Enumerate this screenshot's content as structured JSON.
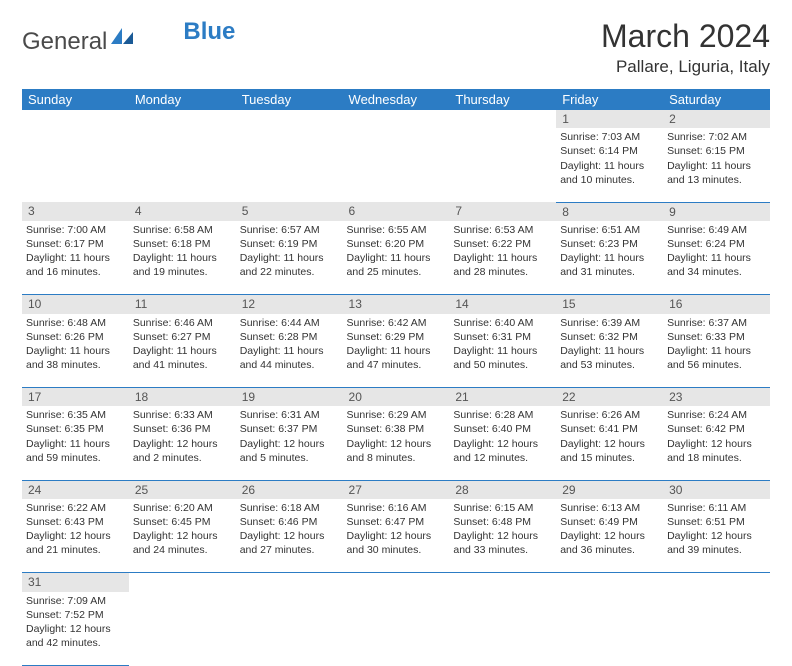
{
  "brand": {
    "text1": "General",
    "text2": "Blue"
  },
  "title": "March 2024",
  "location": "Pallare, Liguria, Italy",
  "colors": {
    "header_bg": "#2c7cc4",
    "daynum_bg": "#e6e6e6",
    "border": "#2c7cc4"
  },
  "weekdays": [
    "Sunday",
    "Monday",
    "Tuesday",
    "Wednesday",
    "Thursday",
    "Friday",
    "Saturday"
  ],
  "weeks": [
    [
      null,
      null,
      null,
      null,
      null,
      {
        "n": "1",
        "sr": "7:03 AM",
        "ss": "6:14 PM",
        "dl": "11 hours and 10 minutes."
      },
      {
        "n": "2",
        "sr": "7:02 AM",
        "ss": "6:15 PM",
        "dl": "11 hours and 13 minutes."
      }
    ],
    [
      {
        "n": "3",
        "sr": "7:00 AM",
        "ss": "6:17 PM",
        "dl": "11 hours and 16 minutes."
      },
      {
        "n": "4",
        "sr": "6:58 AM",
        "ss": "6:18 PM",
        "dl": "11 hours and 19 minutes."
      },
      {
        "n": "5",
        "sr": "6:57 AM",
        "ss": "6:19 PM",
        "dl": "11 hours and 22 minutes."
      },
      {
        "n": "6",
        "sr": "6:55 AM",
        "ss": "6:20 PM",
        "dl": "11 hours and 25 minutes."
      },
      {
        "n": "7",
        "sr": "6:53 AM",
        "ss": "6:22 PM",
        "dl": "11 hours and 28 minutes."
      },
      {
        "n": "8",
        "sr": "6:51 AM",
        "ss": "6:23 PM",
        "dl": "11 hours and 31 minutes."
      },
      {
        "n": "9",
        "sr": "6:49 AM",
        "ss": "6:24 PM",
        "dl": "11 hours and 34 minutes."
      }
    ],
    [
      {
        "n": "10",
        "sr": "6:48 AM",
        "ss": "6:26 PM",
        "dl": "11 hours and 38 minutes."
      },
      {
        "n": "11",
        "sr": "6:46 AM",
        "ss": "6:27 PM",
        "dl": "11 hours and 41 minutes."
      },
      {
        "n": "12",
        "sr": "6:44 AM",
        "ss": "6:28 PM",
        "dl": "11 hours and 44 minutes."
      },
      {
        "n": "13",
        "sr": "6:42 AM",
        "ss": "6:29 PM",
        "dl": "11 hours and 47 minutes."
      },
      {
        "n": "14",
        "sr": "6:40 AM",
        "ss": "6:31 PM",
        "dl": "11 hours and 50 minutes."
      },
      {
        "n": "15",
        "sr": "6:39 AM",
        "ss": "6:32 PM",
        "dl": "11 hours and 53 minutes."
      },
      {
        "n": "16",
        "sr": "6:37 AM",
        "ss": "6:33 PM",
        "dl": "11 hours and 56 minutes."
      }
    ],
    [
      {
        "n": "17",
        "sr": "6:35 AM",
        "ss": "6:35 PM",
        "dl": "11 hours and 59 minutes."
      },
      {
        "n": "18",
        "sr": "6:33 AM",
        "ss": "6:36 PM",
        "dl": "12 hours and 2 minutes."
      },
      {
        "n": "19",
        "sr": "6:31 AM",
        "ss": "6:37 PM",
        "dl": "12 hours and 5 minutes."
      },
      {
        "n": "20",
        "sr": "6:29 AM",
        "ss": "6:38 PM",
        "dl": "12 hours and 8 minutes."
      },
      {
        "n": "21",
        "sr": "6:28 AM",
        "ss": "6:40 PM",
        "dl": "12 hours and 12 minutes."
      },
      {
        "n": "22",
        "sr": "6:26 AM",
        "ss": "6:41 PM",
        "dl": "12 hours and 15 minutes."
      },
      {
        "n": "23",
        "sr": "6:24 AM",
        "ss": "6:42 PM",
        "dl": "12 hours and 18 minutes."
      }
    ],
    [
      {
        "n": "24",
        "sr": "6:22 AM",
        "ss": "6:43 PM",
        "dl": "12 hours and 21 minutes."
      },
      {
        "n": "25",
        "sr": "6:20 AM",
        "ss": "6:45 PM",
        "dl": "12 hours and 24 minutes."
      },
      {
        "n": "26",
        "sr": "6:18 AM",
        "ss": "6:46 PM",
        "dl": "12 hours and 27 minutes."
      },
      {
        "n": "27",
        "sr": "6:16 AM",
        "ss": "6:47 PM",
        "dl": "12 hours and 30 minutes."
      },
      {
        "n": "28",
        "sr": "6:15 AM",
        "ss": "6:48 PM",
        "dl": "12 hours and 33 minutes."
      },
      {
        "n": "29",
        "sr": "6:13 AM",
        "ss": "6:49 PM",
        "dl": "12 hours and 36 minutes."
      },
      {
        "n": "30",
        "sr": "6:11 AM",
        "ss": "6:51 PM",
        "dl": "12 hours and 39 minutes."
      }
    ],
    [
      {
        "n": "31",
        "sr": "7:09 AM",
        "ss": "7:52 PM",
        "dl": "12 hours and 42 minutes."
      },
      null,
      null,
      null,
      null,
      null,
      null
    ]
  ],
  "labels": {
    "sunrise": "Sunrise:",
    "sunset": "Sunset:",
    "daylight": "Daylight:"
  }
}
